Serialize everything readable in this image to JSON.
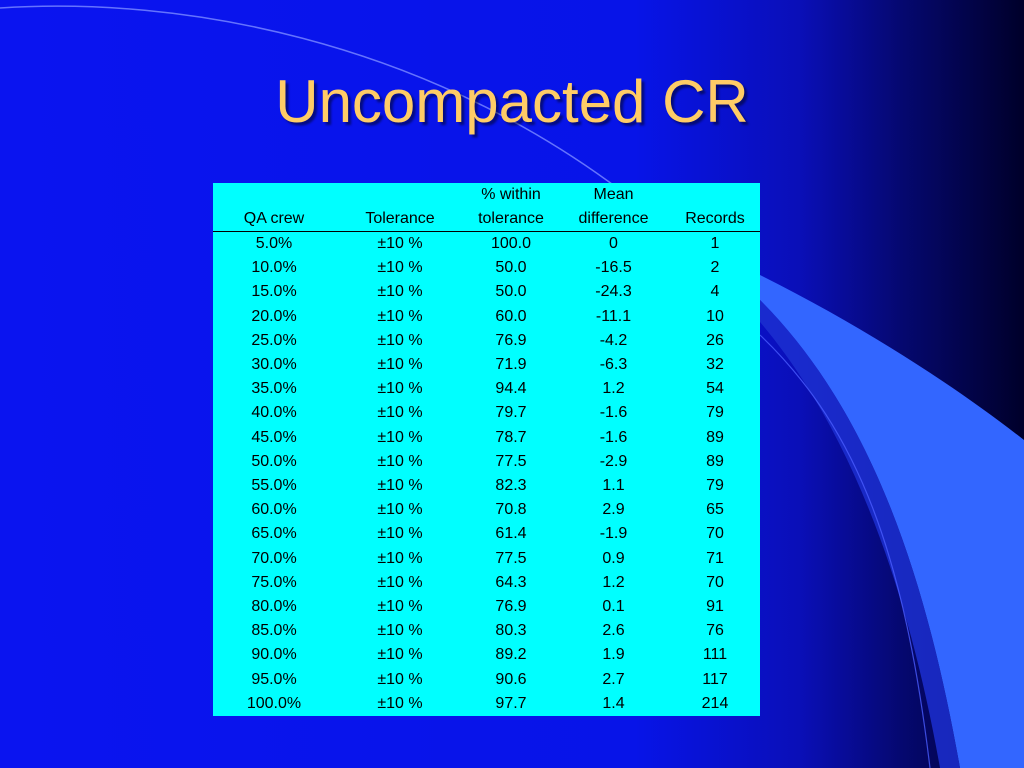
{
  "slide": {
    "title": "Uncompacted CR",
    "colors": {
      "background_left": "#0a14f0",
      "background_right": "#00002a",
      "title": "#ffcc66",
      "table_background": "#00ffff",
      "decor_curve": "#3366ff"
    }
  },
  "table": {
    "header_row1": [
      "",
      "",
      "% within",
      "Mean",
      ""
    ],
    "header_row2": [
      "QA crew",
      "Tolerance",
      "tolerance",
      "difference",
      "Records"
    ],
    "rows": [
      [
        "5.0%",
        "±10 %",
        "100.0",
        "0",
        "1"
      ],
      [
        "10.0%",
        "±10 %",
        "50.0",
        "-16.5",
        "2"
      ],
      [
        "15.0%",
        "±10 %",
        "50.0",
        "-24.3",
        "4"
      ],
      [
        "20.0%",
        "±10 %",
        "60.0",
        "-11.1",
        "10"
      ],
      [
        "25.0%",
        "±10 %",
        "76.9",
        "-4.2",
        "26"
      ],
      [
        "30.0%",
        "±10 %",
        "71.9",
        "-6.3",
        "32"
      ],
      [
        "35.0%",
        "±10 %",
        "94.4",
        "1.2",
        "54"
      ],
      [
        "40.0%",
        "±10 %",
        "79.7",
        "-1.6",
        "79"
      ],
      [
        "45.0%",
        "±10 %",
        "78.7",
        "-1.6",
        "89"
      ],
      [
        "50.0%",
        "±10 %",
        "77.5",
        "-2.9",
        "89"
      ],
      [
        "55.0%",
        "±10 %",
        "82.3",
        "1.1",
        "79"
      ],
      [
        "60.0%",
        "±10 %",
        "70.8",
        "2.9",
        "65"
      ],
      [
        "65.0%",
        "±10 %",
        "61.4",
        "-1.9",
        "70"
      ],
      [
        "70.0%",
        "±10 %",
        "77.5",
        "0.9",
        "71"
      ],
      [
        "75.0%",
        "±10 %",
        "64.3",
        "1.2",
        "70"
      ],
      [
        "80.0%",
        "±10 %",
        "76.9",
        "0.1",
        "91"
      ],
      [
        "85.0%",
        "±10 %",
        "80.3",
        "2.6",
        "76"
      ],
      [
        "90.0%",
        "±10 %",
        "89.2",
        "1.9",
        "111"
      ],
      [
        "95.0%",
        "±10 %",
        "90.6",
        "2.7",
        "117"
      ],
      [
        "100.0%",
        "±10 %",
        "97.7",
        "1.4",
        "214"
      ]
    ]
  }
}
